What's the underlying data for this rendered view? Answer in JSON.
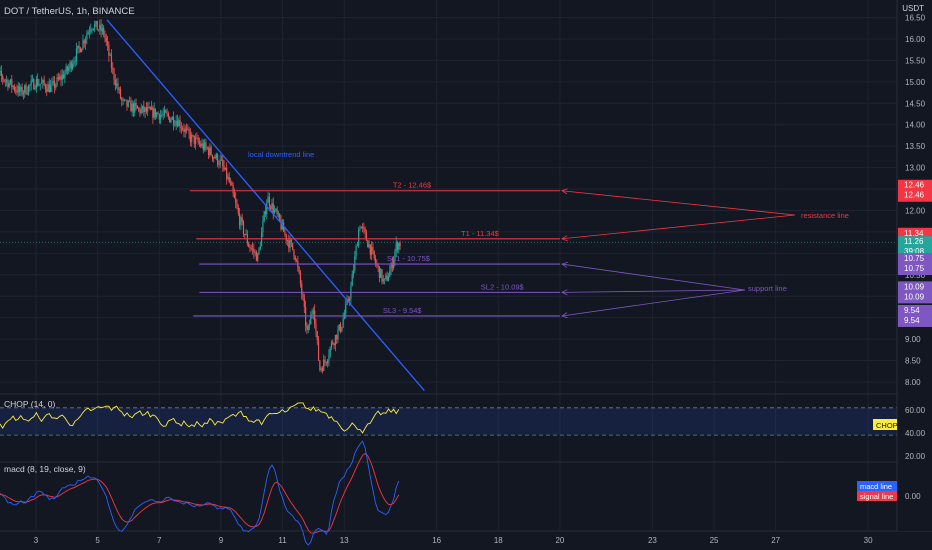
{
  "header": {
    "symbol": "DOT / TetherUS, 1h, BINANCE",
    "currency": "USDT"
  },
  "chart_data": {
    "type": "candlestick",
    "price_axis": {
      "ylim": [
        7.75,
        16.6
      ],
      "ticks": [
        "16.50",
        "16.00",
        "15.50",
        "15.00",
        "14.50",
        "14.00",
        "13.50",
        "13.00",
        "12.50",
        "12.00",
        "11.50",
        "11.00",
        "10.50",
        "10.00",
        "9.50",
        "9.00",
        "8.50",
        "8.00"
      ]
    },
    "x_axis": {
      "ticks": [
        "3",
        "5",
        "7",
        "9",
        "11",
        "13",
        "16",
        "18",
        "20",
        "23",
        "25",
        "27",
        "30"
      ],
      "tick_days": [
        3,
        5,
        7,
        9,
        11,
        13,
        16,
        18,
        20,
        23,
        25,
        27,
        30
      ]
    },
    "price_path": [
      [
        1.5,
        15.3
      ],
      [
        2.0,
        15.05
      ],
      [
        2.5,
        14.75
      ],
      [
        3.0,
        15.0
      ],
      [
        3.5,
        14.85
      ],
      [
        4.0,
        15.25
      ],
      [
        4.5,
        15.9
      ],
      [
        4.8,
        16.35
      ],
      [
        5.2,
        16.15
      ],
      [
        5.5,
        15.2
      ],
      [
        5.8,
        14.5
      ],
      [
        6.3,
        14.35
      ],
      [
        7.0,
        14.25
      ],
      [
        7.6,
        14.1
      ],
      [
        8.0,
        13.7
      ],
      [
        8.6,
        13.4
      ],
      [
        9.0,
        13.1
      ],
      [
        9.3,
        12.6
      ],
      [
        9.6,
        11.8
      ],
      [
        9.9,
        11.2
      ],
      [
        10.2,
        10.9
      ],
      [
        10.5,
        12.3
      ],
      [
        10.8,
        11.9
      ],
      [
        11.1,
        11.4
      ],
      [
        11.4,
        11.0
      ],
      [
        11.6,
        10.2
      ],
      [
        11.8,
        9.1
      ],
      [
        12.0,
        9.8
      ],
      [
        12.2,
        8.3
      ],
      [
        12.4,
        8.5
      ],
      [
        12.6,
        8.9
      ],
      [
        12.9,
        9.3
      ],
      [
        13.2,
        10.1
      ],
      [
        13.5,
        11.7
      ],
      [
        13.8,
        11.2
      ],
      [
        14.0,
        10.8
      ],
      [
        14.3,
        10.3
      ],
      [
        14.5,
        10.6
      ],
      [
        14.7,
        11.2
      ],
      [
        14.85,
        11.26
      ]
    ],
    "last_price": "11.26",
    "countdown": "39:08",
    "levels": [
      {
        "label": "T2 - 12.46$",
        "value": 12.46,
        "axis_label": "12.46",
        "color": "#f23645",
        "start_day": 8.0,
        "end_day": 20.0
      },
      {
        "label": "T1 - 11.34$",
        "value": 11.34,
        "axis_label": "11.34",
        "color": "#f23645",
        "start_day": 8.2,
        "end_day": 20.0
      },
      {
        "label": "SL1 - 10.75$",
        "value": 10.75,
        "axis_label": "10.75",
        "color": "#7e57c2",
        "start_day": 8.3,
        "end_day": 20.0
      },
      {
        "label": "SL2 - 10.09$",
        "value": 10.09,
        "axis_label": "10.09",
        "color": "#7e57c2",
        "start_day": 8.3,
        "end_day": 20.0
      },
      {
        "label": "SL3 - 9.54$",
        "value": 9.54,
        "axis_label": "9.54",
        "color": "#7e57c2",
        "start_day": 8.1,
        "end_day": 20.0
      }
    ],
    "trendline": {
      "label": "local downtrend line",
      "start": [
        5.3,
        16.45
      ],
      "end": [
        15.6,
        7.8
      ],
      "color": "#2962ff"
    },
    "annotations": [
      {
        "text": "resistance line",
        "color": "#f23645"
      },
      {
        "text": "support line",
        "color": "#7e57c2"
      }
    ],
    "chop": {
      "label": "CHOP (14, 0)",
      "ylim": [
        15,
        72
      ],
      "ticks": [
        "60.00",
        "40.00",
        "20.00"
      ],
      "upper": 61.8,
      "lower": 38.2,
      "badge": "CHOP",
      "color": "#ffeb3b"
    },
    "macd": {
      "label": "macd (8, 19, close, 9)",
      "tick": "0.00",
      "legend": [
        {
          "name": "macd line",
          "color": "#2962ff"
        },
        {
          "name": "signal line",
          "color": "#f23645"
        }
      ]
    }
  }
}
